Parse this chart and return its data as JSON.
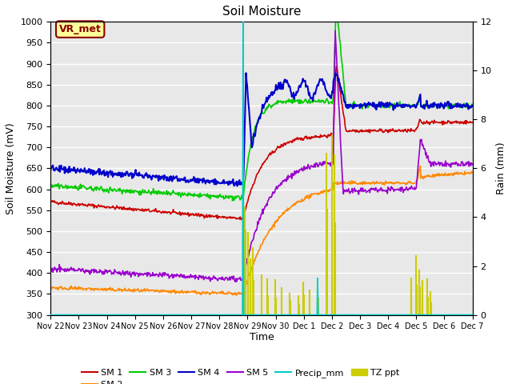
{
  "title": "Soil Moisture",
  "xlabel": "Time",
  "ylabel_left": "Soil Moisture (mV)",
  "ylabel_right": "Rain (mm)",
  "ylim_left": [
    300,
    1000
  ],
  "ylim_right": [
    0,
    12
  ],
  "background_color": "#e8e8e8",
  "grid_color": "#ffffff",
  "annotation_text": "VR_met",
  "annotation_color": "#8b0000",
  "annotation_bg": "#ffff99",
  "series_colors": {
    "SM1": "#cc0000",
    "SM2": "#ff8800",
    "SM3": "#00cc00",
    "SM4": "#0000cc",
    "SM5": "#9900cc",
    "Precip_mm": "#00cccc",
    "TZ_ppt": "#cccc00"
  },
  "tick_labels": [
    "Nov 22",
    "Nov 23",
    "Nov 24",
    "Nov 25",
    "Nov 26",
    "Nov 27",
    "Nov 28",
    "Nov 29",
    "Nov 30",
    "Dec 1",
    "Dec 2",
    "Dec 3",
    "Dec 4",
    "Dec 5",
    "Dec 6",
    "Dec 7"
  ]
}
